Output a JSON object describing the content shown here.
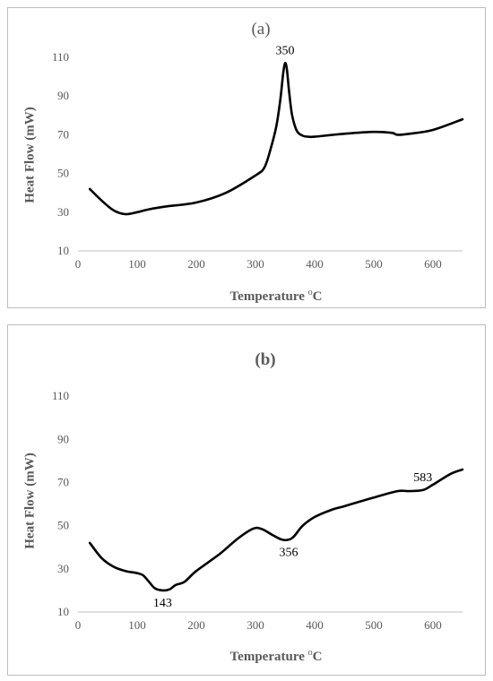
{
  "chart_data": [
    {
      "type": "line",
      "title": "(a)",
      "xlabel_main": "Temperature ",
      "xlabel_sup": "o",
      "xlabel_unit": "C",
      "ylabel": "Heat Flow (mW)",
      "xlim": [
        0,
        650
      ],
      "ylim": [
        10,
        110
      ],
      "xticks": [
        0,
        100,
        200,
        300,
        400,
        500,
        600
      ],
      "yticks": [
        10,
        30,
        50,
        70,
        90,
        110
      ],
      "grid": false,
      "line_color": "#000000",
      "series": [
        {
          "x": [
            20,
            40,
            60,
            80,
            100,
            120,
            150,
            200,
            250,
            300,
            315,
            325,
            335,
            342,
            347,
            350,
            353,
            357,
            362,
            370,
            380,
            390,
            400,
            450,
            500,
            530,
            540,
            560,
            600,
            650
          ],
          "y": [
            42,
            36,
            31,
            29,
            30,
            31.5,
            33,
            35,
            40,
            49,
            53,
            62,
            74,
            88,
            102,
            107,
            104,
            92,
            80,
            72,
            69.5,
            69,
            69,
            70.5,
            71.5,
            71,
            70,
            70.5,
            72.5,
            78
          ]
        }
      ],
      "annotations": [
        {
          "text": "350",
          "x": 350,
          "y": 107
        }
      ]
    },
    {
      "type": "line",
      "title": "(b)",
      "xlabel_main": "Temperature ",
      "xlabel_sup": "o",
      "xlabel_unit": "C",
      "ylabel": "Heat Flow (mW)",
      "xlim": [
        0,
        650
      ],
      "ylim": [
        10,
        120
      ],
      "xticks": [
        0,
        100,
        200,
        300,
        400,
        500,
        600
      ],
      "yticks": [
        10,
        30,
        50,
        70,
        90,
        110
      ],
      "grid": false,
      "line_color": "#000000",
      "series": [
        {
          "x": [
            20,
            40,
            60,
            80,
            100,
            110,
            120,
            130,
            143,
            155,
            165,
            180,
            200,
            240,
            270,
            295,
            310,
            330,
            345,
            356,
            365,
            380,
            400,
            430,
            450,
            500,
            540,
            560,
            583,
            600,
            630,
            650
          ],
          "y": [
            42,
            35,
            31,
            29,
            28,
            27,
            24,
            21,
            20,
            20.5,
            22.5,
            24,
            29,
            37,
            44,
            48.5,
            48.5,
            45.5,
            43.5,
            43.5,
            45,
            50,
            54,
            57.5,
            59,
            63,
            66,
            66,
            66.5,
            69,
            74,
            76
          ]
        }
      ],
      "annotations": [
        {
          "text": "143",
          "x": 143,
          "y": 20
        },
        {
          "text": "356",
          "x": 356,
          "y": 43.5
        },
        {
          "text": "583",
          "x": 583,
          "y": 66.5
        }
      ]
    }
  ]
}
